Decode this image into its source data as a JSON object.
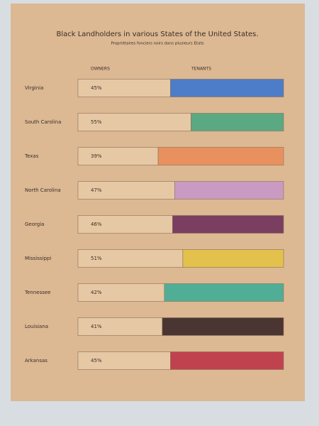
{
  "chart_data": {
    "type": "stacked-barh",
    "title": "Black Landholders in various States of the United States.",
    "subtitle": "Propriétaires fonciers noirs dans plusieurs Etats",
    "categories": [
      "Virginia",
      "South Carolina",
      "Texas",
      "North Carolina",
      "Georgia",
      "Mississippi",
      "Tennessee",
      "Louisiana",
      "Arkansas"
    ],
    "series": [
      {
        "name": "OWNERS",
        "color": "#e6c9a4",
        "values": [
          45,
          55,
          39,
          47,
          46,
          51,
          42,
          41,
          45
        ],
        "value_labels": [
          "45%",
          "55%",
          "39%",
          "47%",
          "46%",
          "51%",
          "42%",
          "41%",
          "45%"
        ]
      },
      {
        "name": "TENANTS",
        "colors": [
          "#4d7cc8",
          "#5aa982",
          "#e8915f",
          "#c99bc2",
          "#7a3f60",
          "#e2c24c",
          "#4fae95",
          "#4a3532",
          "#c1424f"
        ],
        "values": [
          55,
          45,
          61,
          53,
          54,
          49,
          58,
          59,
          55
        ]
      }
    ],
    "xlim": [
      0,
      100
    ]
  }
}
